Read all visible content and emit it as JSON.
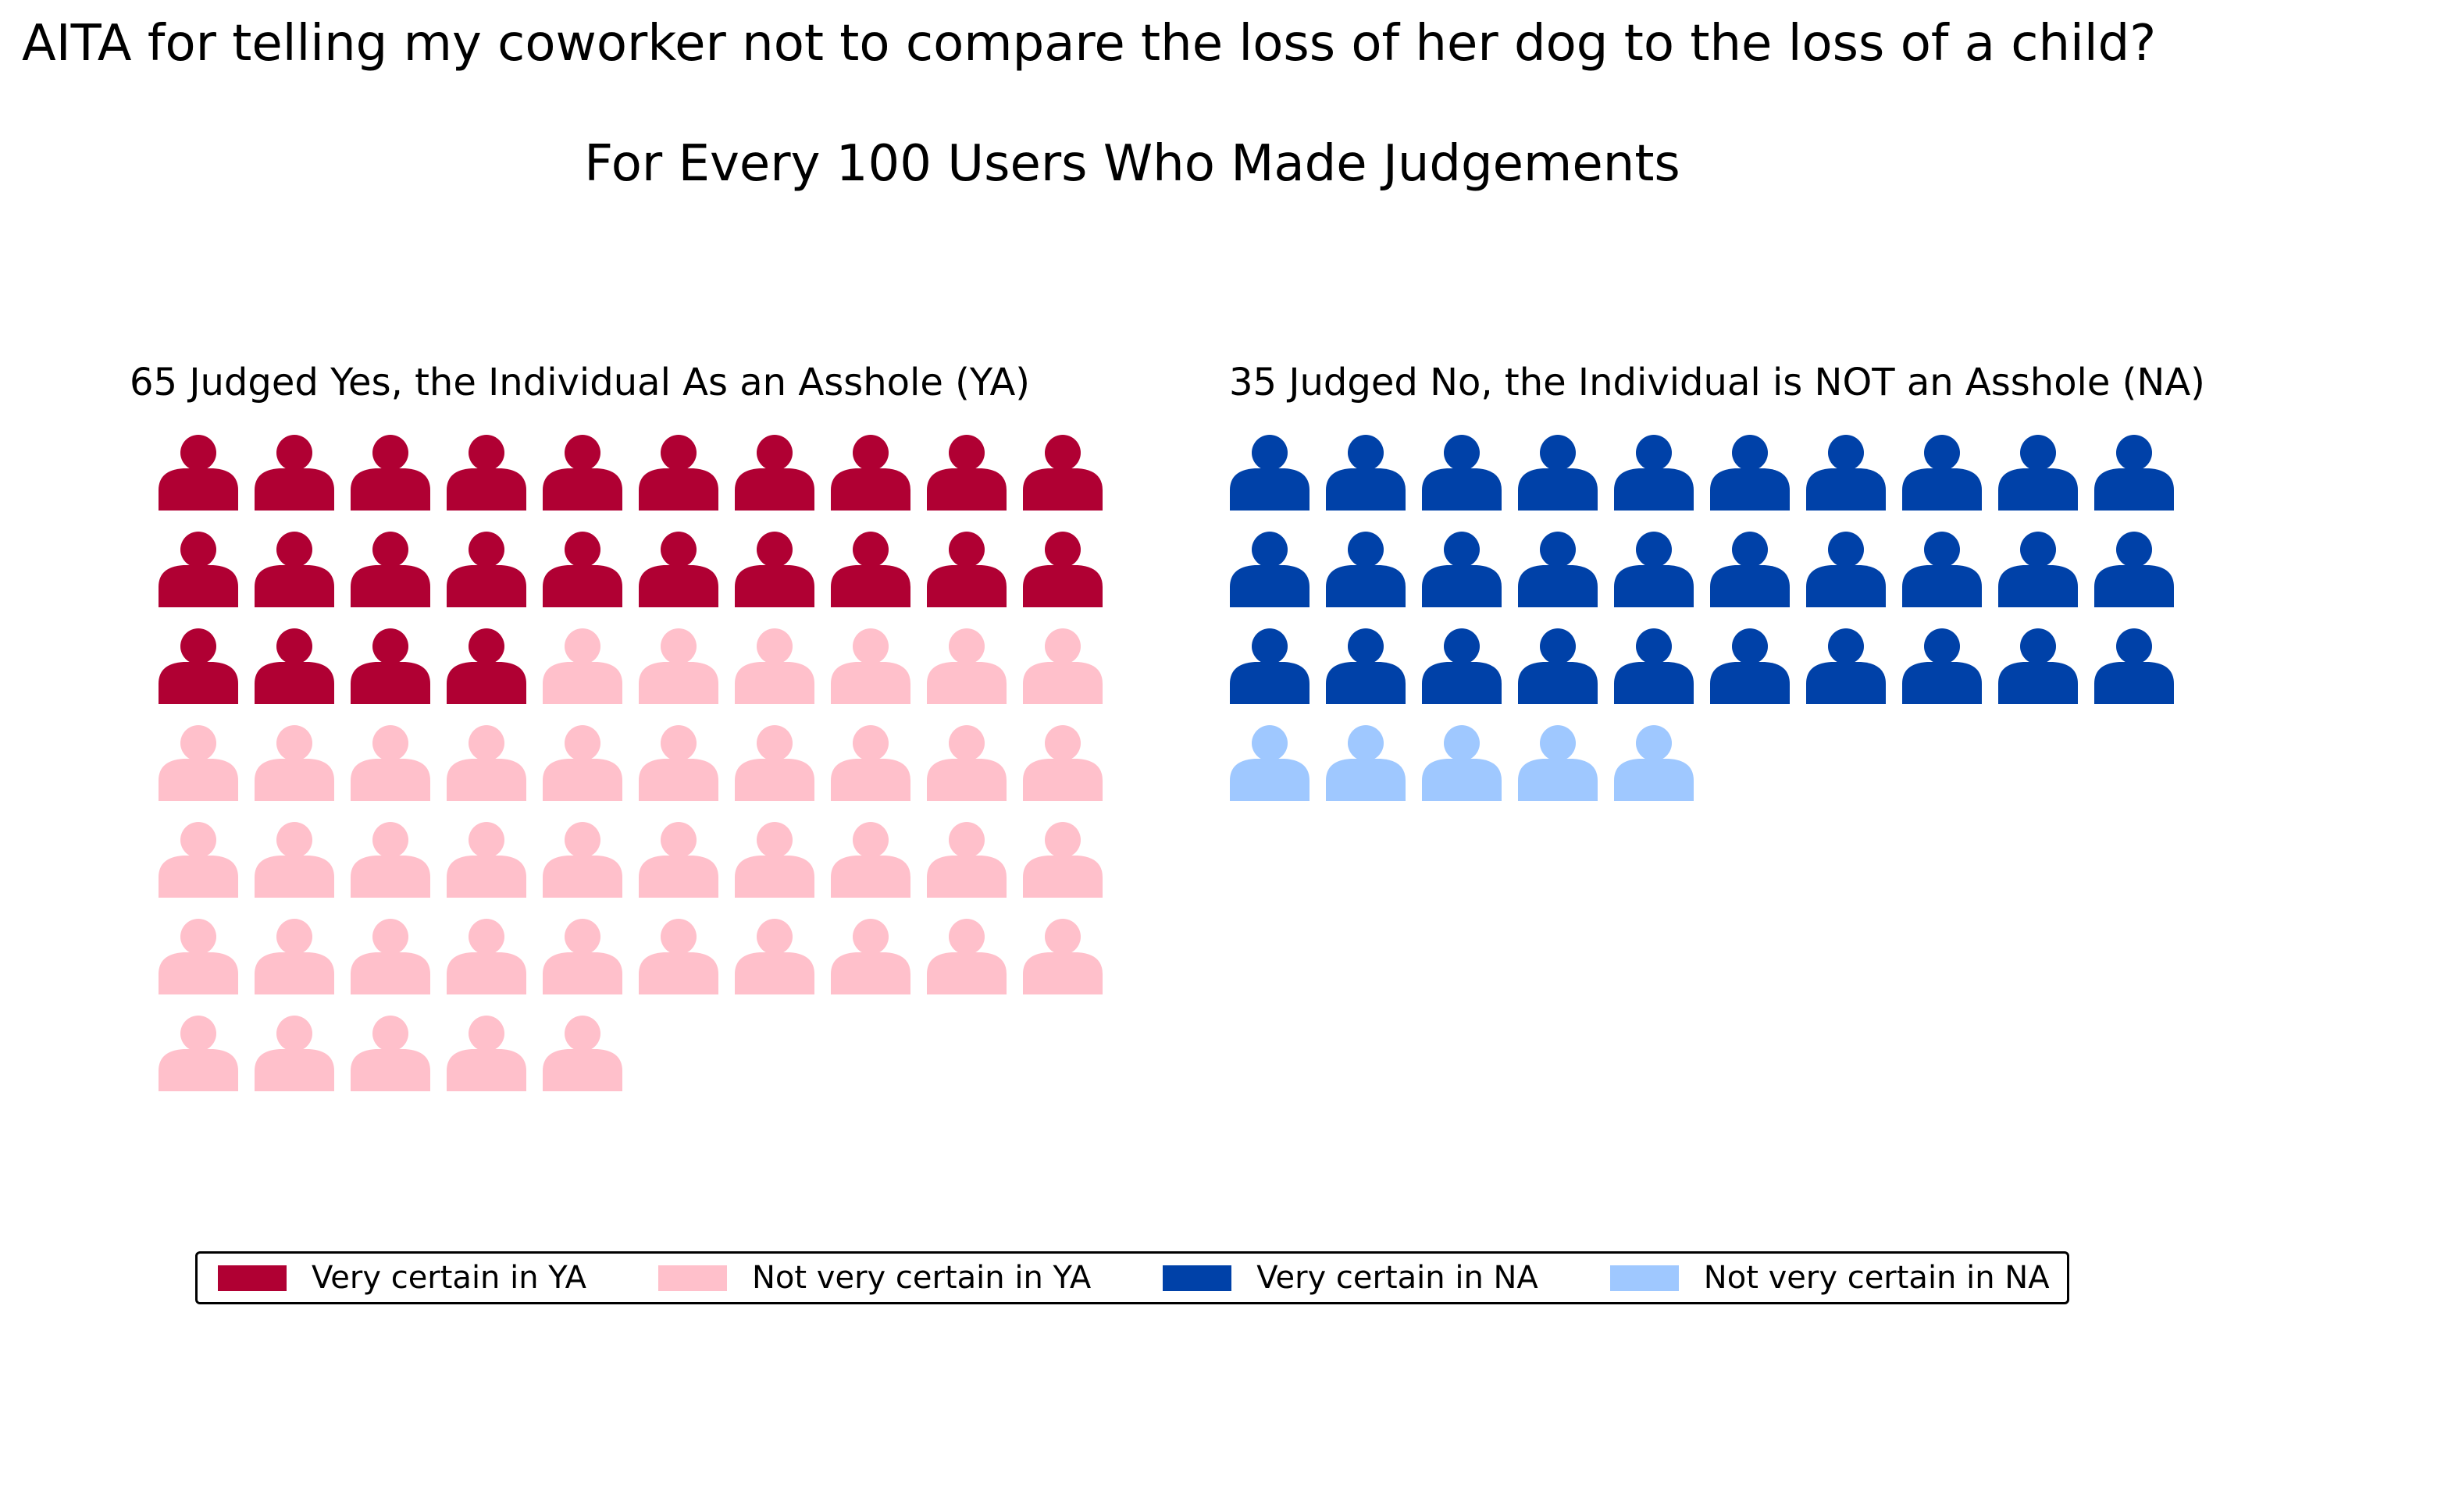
{
  "title": "AITA for telling my coworker not to compare the loss of her dog to the loss of a child?",
  "subtitle": "For Every 100 Users Who Made Judgements",
  "colors": {
    "very_certain_ya": "#b00033",
    "not_very_certain_ya": "#ffc0cb",
    "very_certain_na": "#0041a8",
    "not_very_certain_na": "#9fc8ff"
  },
  "icon": "person-icon",
  "chart_data": [
    {
      "type": "pictograph",
      "title": "65 Judged Yes, the Individual As an Asshole (YA)",
      "icons_per_row": 10,
      "series": [
        {
          "name": "Very certain in YA",
          "value": 24,
          "color": "#b00033"
        },
        {
          "name": "Not very certain in YA",
          "value": 41,
          "color": "#ffc0cb"
        }
      ],
      "total": 65
    },
    {
      "type": "pictograph",
      "title": "35 Judged No, the Individual is NOT an Asshole (NA)",
      "icons_per_row": 10,
      "series": [
        {
          "name": "Very certain in NA",
          "value": 30,
          "color": "#0041a8"
        },
        {
          "name": "Not very certain in NA",
          "value": 5,
          "color": "#9fc8ff"
        }
      ],
      "total": 35
    }
  ],
  "legend": {
    "placement": "bottom",
    "items": [
      {
        "label": "Very certain in YA",
        "color": "#b00033"
      },
      {
        "label": "Not very certain in YA",
        "color": "#ffc0cb"
      },
      {
        "label": "Very certain in NA",
        "color": "#0041a8"
      },
      {
        "label": "Not very certain in NA",
        "color": "#9fc8ff"
      }
    ]
  }
}
